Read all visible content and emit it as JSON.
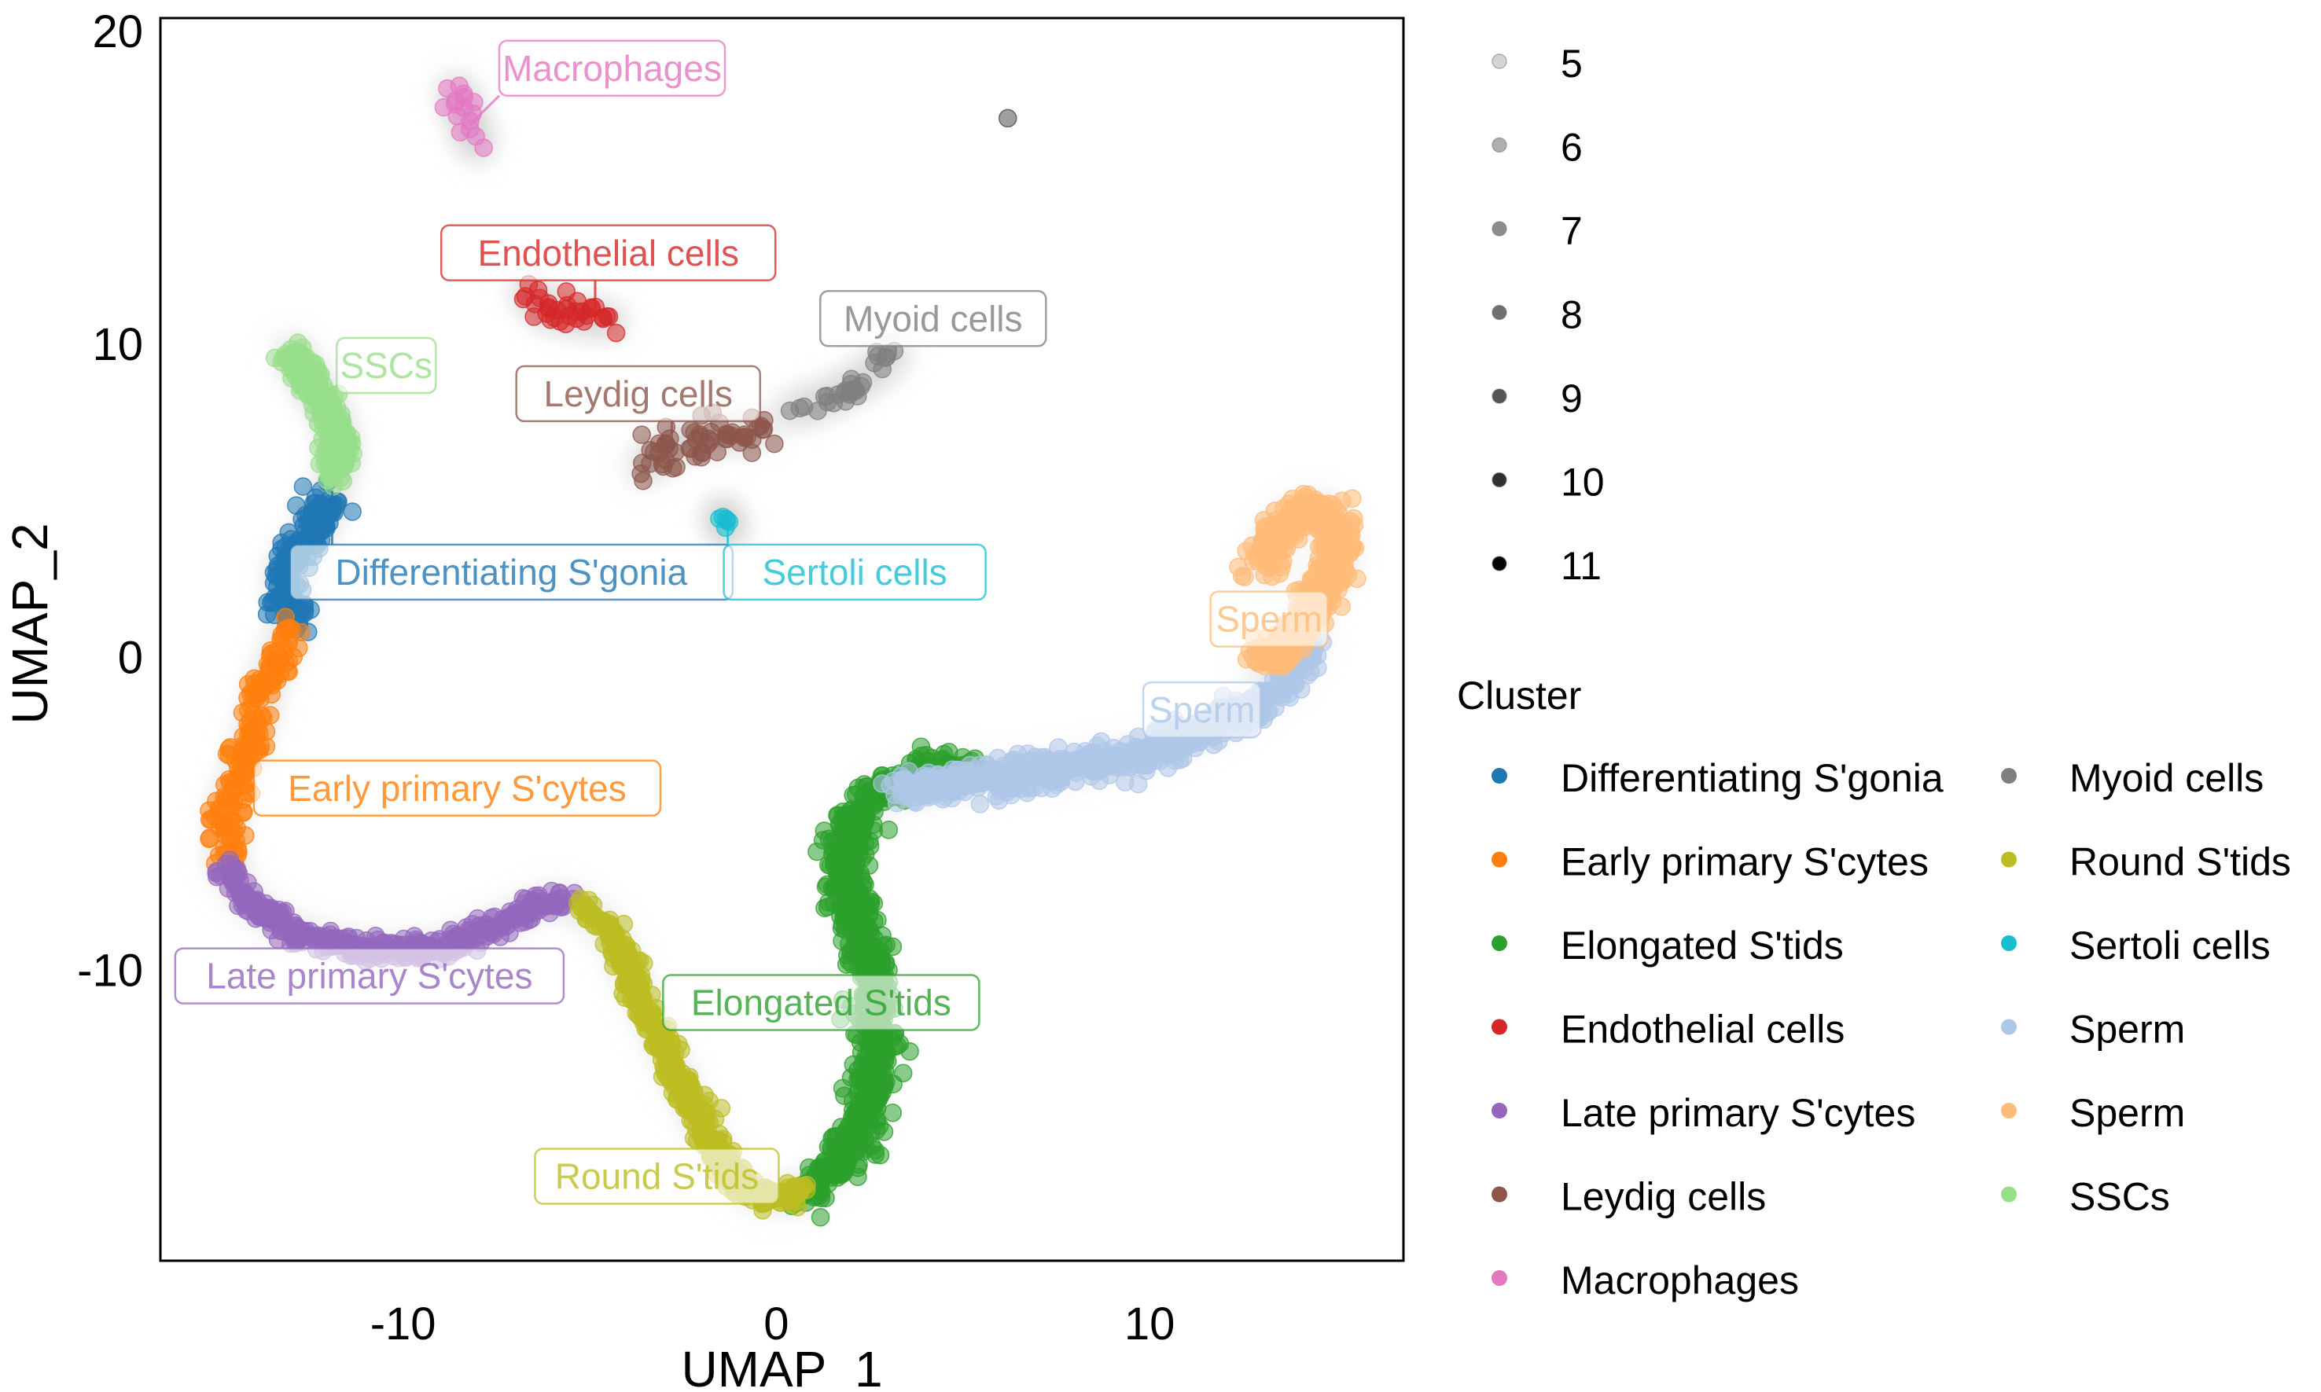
{
  "chart_data": {
    "type": "scatter",
    "title": "",
    "xlabel": "UMAP_1",
    "ylabel": "UMAP_2",
    "xlim": [
      -16.5,
      16.8
    ],
    "ylim": [
      -19.3,
      20.4
    ],
    "xticks": [
      -10,
      0,
      10
    ],
    "yticks": [
      -10,
      0,
      10,
      20
    ],
    "grid": false,
    "size_legend": {
      "title_visible": false,
      "values": [
        5,
        6,
        7,
        8,
        9,
        10,
        11
      ],
      "placement": "top-right"
    },
    "cluster_legend": {
      "title": "Cluster",
      "placement": "right",
      "columns": 2
    },
    "clusters": [
      {
        "name": "Differentiating S'gonia",
        "color": "#1f77b4",
        "label_pos": [
          -7.1,
          2.7
        ],
        "path": [
          [
            -11.9,
            5.3
          ],
          [
            -12.6,
            3.6
          ],
          [
            -13.2,
            2.7
          ],
          [
            -13.0,
            1.6
          ],
          [
            -12.9,
            1.2
          ]
        ],
        "spread": 0.45,
        "n": 160
      },
      {
        "name": "Early primary S'cytes",
        "color": "#ff7f0e",
        "label_pos": [
          -8.55,
          -4.2
        ],
        "path": [
          [
            -13.0,
            0.9
          ],
          [
            -13.6,
            -0.6
          ],
          [
            -14.0,
            -2.4
          ],
          [
            -14.3,
            -3.6
          ],
          [
            -14.8,
            -5.0
          ],
          [
            -14.7,
            -6.4
          ]
        ],
        "spread": 0.35,
        "n": 170
      },
      {
        "name": "Elongated S'tids",
        "color": "#2ca02c",
        "label_pos": [
          1.2,
          -11.05
        ],
        "path": [
          [
            0.7,
            -17.2
          ],
          [
            1.5,
            -16.5
          ],
          [
            2.3,
            -15.0
          ],
          [
            2.8,
            -12.5
          ],
          [
            2.5,
            -10.0
          ],
          [
            2.0,
            -8.0
          ],
          [
            1.8,
            -6.0
          ],
          [
            2.6,
            -4.4
          ],
          [
            4.0,
            -3.8
          ],
          [
            5.2,
            -3.6
          ]
        ],
        "spread": 0.45,
        "n": 900
      },
      {
        "name": "Endothelial cells",
        "color": "#d62728",
        "label_pos": [
          -4.5,
          12.9
        ],
        "path": [
          [
            -6.7,
            11.7
          ],
          [
            -6.1,
            11.0
          ],
          [
            -5.3,
            10.9
          ],
          [
            -4.4,
            10.7
          ]
        ],
        "spread": 0.45,
        "n": 34
      },
      {
        "name": "Late primary S'cytes",
        "color": "#9467bd",
        "label_pos": [
          -10.9,
          -10.2
        ],
        "path": [
          [
            -14.8,
            -6.6
          ],
          [
            -14.2,
            -7.8
          ],
          [
            -12.8,
            -8.9
          ],
          [
            -10.8,
            -9.4
          ],
          [
            -9.0,
            -9.3
          ],
          [
            -7.5,
            -8.6
          ],
          [
            -6.3,
            -7.8
          ],
          [
            -5.6,
            -7.8
          ]
        ],
        "spread": 0.28,
        "n": 380
      },
      {
        "name": "Leydig cells",
        "color": "#8c564b",
        "label_pos": [
          -3.7,
          8.4
        ],
        "path": [
          [
            -3.6,
            6.0
          ],
          [
            -2.8,
            6.8
          ],
          [
            -1.8,
            7.1
          ],
          [
            -0.5,
            7.2
          ]
        ],
        "spread": 0.6,
        "n": 60
      },
      {
        "name": "Macrophages",
        "color": "#e377c2",
        "label_pos": [
          -4.4,
          18.8
        ],
        "path": [
          [
            -8.6,
            18.1
          ],
          [
            -8.3,
            17.2
          ],
          [
            -8.0,
            16.3
          ]
        ],
        "spread": 0.35,
        "n": 16
      },
      {
        "name": "Myoid cells",
        "color": "#7f7f7f",
        "label_pos": [
          4.2,
          10.8
        ],
        "path": [
          [
            0.3,
            7.8
          ],
          [
            1.5,
            8.3
          ],
          [
            2.5,
            9.0
          ],
          [
            3.2,
            9.7
          ]
        ],
        "spread": 0.25,
        "n": 30
      },
      {
        "name": "Round S'tids",
        "color": "#bcbd22",
        "label_pos": [
          -3.2,
          -16.6
        ],
        "path": [
          [
            -5.3,
            -8.0
          ],
          [
            -4.5,
            -8.6
          ],
          [
            -3.8,
            -10.5
          ],
          [
            -2.8,
            -13.0
          ],
          [
            -1.8,
            -15.5
          ],
          [
            -1.0,
            -16.8
          ],
          [
            -0.2,
            -17.4
          ],
          [
            0.8,
            -17.0
          ]
        ],
        "spread": 0.28,
        "n": 480
      },
      {
        "name": "Sertoli cells",
        "color": "#17becf",
        "label_pos": [
          2.1,
          2.7
        ],
        "path": [
          [
            -1.45,
            4.5
          ],
          [
            -1.3,
            4.1
          ]
        ],
        "spread": 0.12,
        "n": 6
      },
      {
        "name": "Sperm",
        "color": "#aec7e8",
        "label_pos": [
          11.4,
          -1.7
        ],
        "path": [
          [
            3.2,
            -4.3
          ],
          [
            5.5,
            -3.9
          ],
          [
            7.5,
            -3.6
          ],
          [
            9.5,
            -3.2
          ],
          [
            11.5,
            -2.4
          ],
          [
            12.8,
            -1.6
          ],
          [
            13.8,
            -0.5
          ],
          [
            14.3,
            0.4
          ]
        ],
        "spread": 0.4,
        "n": 700
      },
      {
        "name": "Sperm",
        "color": "#ffbb78",
        "label_pos": [
          13.2,
          1.2
        ],
        "path": [
          [
            13.0,
            -0.2
          ],
          [
            13.9,
            0.6
          ],
          [
            14.4,
            1.8
          ],
          [
            14.9,
            2.6
          ],
          [
            15.1,
            3.6
          ],
          [
            14.8,
            4.6
          ],
          [
            14.2,
            4.8
          ],
          [
            13.4,
            4.0
          ],
          [
            13.0,
            2.8
          ]
        ],
        "spread": 0.4,
        "n": 620
      },
      {
        "name": "SSCs",
        "color": "#98df8a",
        "label_pos": [
          -10.45,
          9.3
        ],
        "path": [
          [
            -13.0,
            9.8
          ],
          [
            -12.5,
            8.8
          ],
          [
            -11.9,
            7.7
          ],
          [
            -11.7,
            6.8
          ],
          [
            -11.8,
            5.8
          ]
        ],
        "spread": 0.3,
        "n": 260
      }
    ],
    "outliers": [
      {
        "cluster": "Myoid cells",
        "x": 6.2,
        "y": 17.2
      }
    ]
  },
  "legend_cluster_rows": [
    [
      "Differentiating S'gonia",
      "Myoid cells"
    ],
    [
      "Early primary S'cytes",
      "Round S'tids"
    ],
    [
      "Elongated S'tids",
      "Sertoli cells"
    ],
    [
      "Endothelial cells",
      "Sperm"
    ],
    [
      "Late primary S'cytes",
      "Sperm"
    ],
    [
      "Leydig cells",
      "SSCs"
    ],
    [
      "Macrophages",
      null
    ]
  ]
}
